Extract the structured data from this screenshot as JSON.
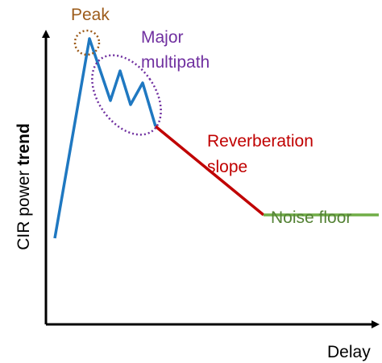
{
  "axes": {
    "y_label": {
      "text": "CIR power",
      "bold": "trend"
    },
    "x_label": "Delay"
  },
  "annotations": {
    "peak": "Peak",
    "multipath": [
      "Major",
      "multipath"
    ],
    "reverberation": [
      "Reverberation",
      "slope"
    ],
    "noise": "Noise floor"
  }
}
